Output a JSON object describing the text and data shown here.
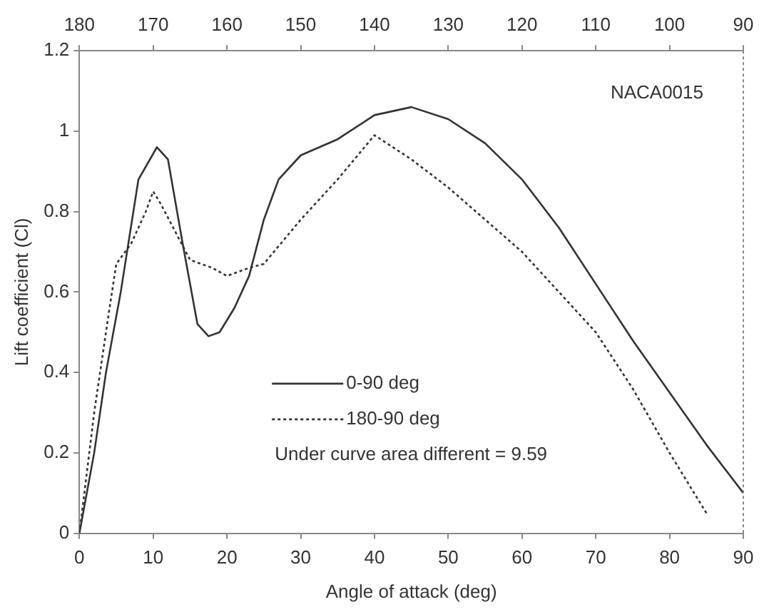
{
  "chart_data": {
    "type": "line",
    "xlabel": "Angle of attack (deg)",
    "ylabel": "Lift coefficient (Cl)",
    "xlim": [
      0,
      90
    ],
    "xticks": [
      0,
      10,
      20,
      30,
      40,
      50,
      60,
      70,
      80,
      90
    ],
    "x2lim": [
      180,
      90
    ],
    "x2ticks": [
      180,
      170,
      160,
      150,
      140,
      130,
      120,
      110,
      100,
      90
    ],
    "ylim": [
      0,
      1.2
    ],
    "yticks": [
      0,
      0.2,
      0.4,
      0.6,
      0.8,
      1,
      1.2
    ],
    "grid": false,
    "legend": "center",
    "marker": "none",
    "annotations": [
      "NACA0015",
      "Under curve area different = 9.59"
    ],
    "series": [
      {
        "name": "0-90 deg",
        "color": "#333333",
        "line_style": "solid",
        "x": [
          0,
          2,
          3.6,
          5.6,
          8,
          10.5,
          12,
          14,
          16,
          17.5,
          19,
          21,
          23,
          25,
          27,
          30,
          35,
          40,
          45,
          50,
          55,
          60,
          65,
          70,
          75,
          80,
          85,
          90
        ],
        "values": [
          0,
          0.2,
          0.4,
          0.6,
          0.88,
          0.96,
          0.93,
          0.72,
          0.52,
          0.49,
          0.5,
          0.56,
          0.64,
          0.78,
          0.88,
          0.94,
          0.98,
          1.04,
          1.06,
          1.03,
          0.97,
          0.88,
          0.76,
          0.62,
          0.48,
          0.35,
          0.22,
          0.1
        ]
      },
      {
        "name": "180-90 deg",
        "color": "#333333",
        "line_style": "dotted",
        "x": [
          0,
          2,
          4,
          5,
          7,
          9,
          10,
          11,
          13,
          15,
          18,
          20,
          23,
          25,
          30,
          35,
          40,
          45,
          50,
          55,
          60,
          65,
          70,
          75,
          80,
          85
        ],
        "values": [
          0,
          0.3,
          0.55,
          0.67,
          0.72,
          0.8,
          0.85,
          0.82,
          0.75,
          0.68,
          0.66,
          0.64,
          0.66,
          0.67,
          0.78,
          0.88,
          0.99,
          0.93,
          0.86,
          0.78,
          0.7,
          0.6,
          0.5,
          0.36,
          0.2,
          0.05
        ]
      }
    ]
  }
}
